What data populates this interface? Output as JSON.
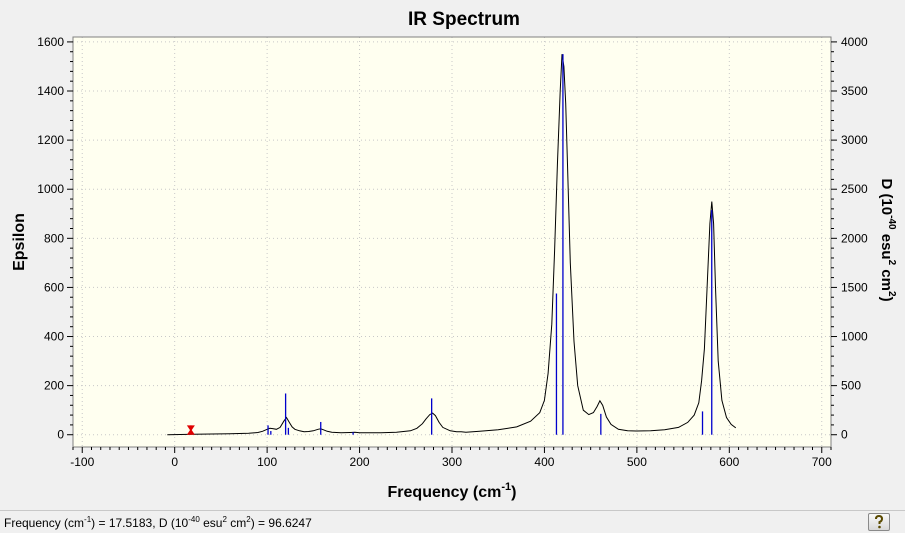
{
  "chart_data": {
    "type": "line",
    "title": "IR Spectrum",
    "xlabel": "Frequency (cm",
    "xlabel_sup": "-1",
    "xlabel_end": ")",
    "ylabel": "Epsilon",
    "y2label_parts": [
      "D (10",
      "-40",
      " esu",
      "2",
      " cm",
      "2",
      ")"
    ],
    "xlim": [
      -110,
      710
    ],
    "ylim": [
      -50,
      1620
    ],
    "y2lim": [
      -125,
      4050
    ],
    "x_ticks": [
      -100,
      0,
      100,
      200,
      300,
      400,
      500,
      600,
      700
    ],
    "y_ticks": [
      0,
      200,
      400,
      600,
      800,
      1000,
      1200,
      1400,
      1600
    ],
    "y2_ticks": [
      0,
      500,
      1000,
      1500,
      2000,
      2500,
      3000,
      3500,
      4000
    ],
    "series": [
      {
        "x": [
          -8,
          20,
          40,
          60,
          80,
          90,
          95,
          100,
          103,
          106,
          110,
          114,
          118,
          121,
          124,
          127,
          130,
          135,
          140,
          145,
          150,
          155,
          158,
          161,
          165,
          170,
          180,
          190,
          195,
          200,
          220,
          240,
          255,
          262,
          268,
          272,
          276,
          279,
          282,
          286,
          290,
          298,
          305,
          310,
          315,
          330,
          350,
          370,
          385,
          395,
          400,
          404,
          408,
          411,
          414,
          417,
          419,
          421,
          423,
          425,
          428,
          432,
          436,
          442,
          448,
          453,
          457,
          460,
          463,
          467,
          472,
          480,
          490,
          500,
          515,
          530,
          545,
          555,
          562,
          567,
          570,
          573,
          576,
          579,
          581,
          583,
          585,
          588,
          592,
          597,
          602,
          607
        ],
        "y": [
          0,
          2,
          3,
          4,
          6,
          9,
          14,
          22,
          26,
          25,
          22,
          30,
          55,
          70,
          50,
          32,
          22,
          16,
          12,
          13,
          16,
          22,
          24,
          20,
          14,
          10,
          8,
          9,
          10,
          8,
          8,
          10,
          16,
          26,
          45,
          65,
          82,
          88,
          78,
          50,
          30,
          16,
          12,
          12,
          10,
          14,
          20,
          32,
          55,
          90,
          140,
          250,
          450,
          750,
          1100,
          1400,
          1550,
          1500,
          1350,
          1100,
          700,
          380,
          200,
          100,
          82,
          90,
          115,
          138,
          120,
          72,
          42,
          22,
          16,
          15,
          16,
          20,
          30,
          50,
          80,
          130,
          220,
          350,
          600,
          860,
          950,
          860,
          600,
          300,
          140,
          70,
          42,
          28
        ]
      }
    ],
    "sticks": [
      {
        "x": 101,
        "y": 38
      },
      {
        "x": 104,
        "y": 15
      },
      {
        "x": 120,
        "y": 168
      },
      {
        "x": 123,
        "y": 28
      },
      {
        "x": 158,
        "y": 52
      },
      {
        "x": 193,
        "y": 10
      },
      {
        "x": 278,
        "y": 148
      },
      {
        "x": 413,
        "y": 575
      },
      {
        "x": 420,
        "y": 1550
      },
      {
        "x": 461,
        "y": 85
      },
      {
        "x": 571,
        "y": 95
      },
      {
        "x": 581,
        "y": 915
      }
    ],
    "marker": {
      "x": 17.5,
      "y": 38
    },
    "colors": {
      "line": "#000000",
      "sticks": "#0000cc",
      "marker": "#e00000",
      "plot_bg": "#fffff0",
      "grid": "#c8c8c8"
    },
    "grid": true
  },
  "status": {
    "text_prefix": "Frequency (cm",
    "text_sup1": "-1",
    "text_mid1": ") = 17.5183, D (10",
    "text_sup2": "-40",
    "text_mid2": " esu",
    "text_sup3": "2",
    "text_mid3": " cm",
    "text_sup4": "2",
    "text_end": ") = 96.6247",
    "help_icon": "help-icon"
  }
}
